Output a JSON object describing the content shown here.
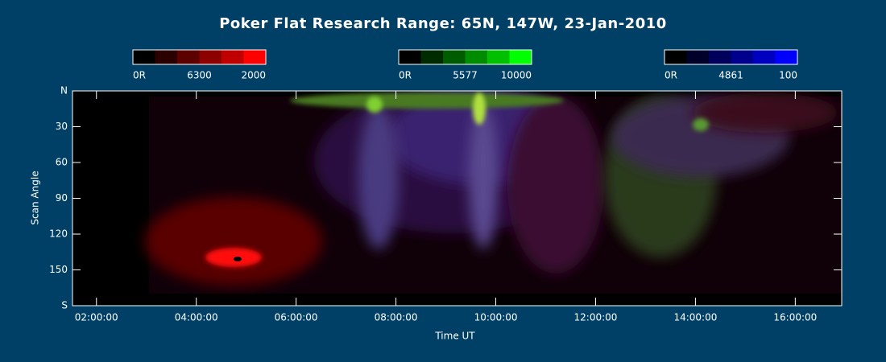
{
  "chart_data": {
    "type": "keogram",
    "title": "Poker Flat Research Range: 65N, 147W, 23-Jan-2010",
    "x_label": "Time UT",
    "y_label": "Scan Angle",
    "xlim": [
      1.52,
      16.93
    ],
    "xticks": [
      {
        "value": 2,
        "label": "02:00:00"
      },
      {
        "value": 4,
        "label": "04:00:00"
      },
      {
        "value": 6,
        "label": "06:00:00"
      },
      {
        "value": 8,
        "label": "08:00:00"
      },
      {
        "value": 10,
        "label": "10:00:00"
      },
      {
        "value": 12,
        "label": "12:00:00"
      },
      {
        "value": 14,
        "label": "14:00:00"
      },
      {
        "value": 16,
        "label": "16:00:00"
      }
    ],
    "ylim": [
      0,
      180
    ],
    "yticks": [
      {
        "value": 0,
        "label": "N"
      },
      30,
      60,
      90,
      120,
      150,
      {
        "value": 180,
        "label": "S"
      }
    ],
    "colorbars": [
      {
        "name": "6300",
        "colors": [
          "#000000",
          "#2a0000",
          "#5c0000",
          "#8c0000",
          "#c00000",
          "#ff0000"
        ],
        "ticks": [
          {
            "value": 0,
            "label": "0R"
          },
          2000
        ]
      },
      {
        "name": "5577",
        "colors": [
          "#000000",
          "#002a00",
          "#005c00",
          "#008c00",
          "#00c000",
          "#00ff00"
        ],
        "ticks": [
          {
            "value": 0,
            "label": "0R"
          },
          10000
        ]
      },
      {
        "name": "4861",
        "colors": [
          "#000000",
          "#00002a",
          "#00005c",
          "#00008c",
          "#0000c0",
          "#0000ff"
        ],
        "ticks": [
          {
            "value": 0,
            "label": "0R"
          },
          100
        ]
      }
    ]
  }
}
